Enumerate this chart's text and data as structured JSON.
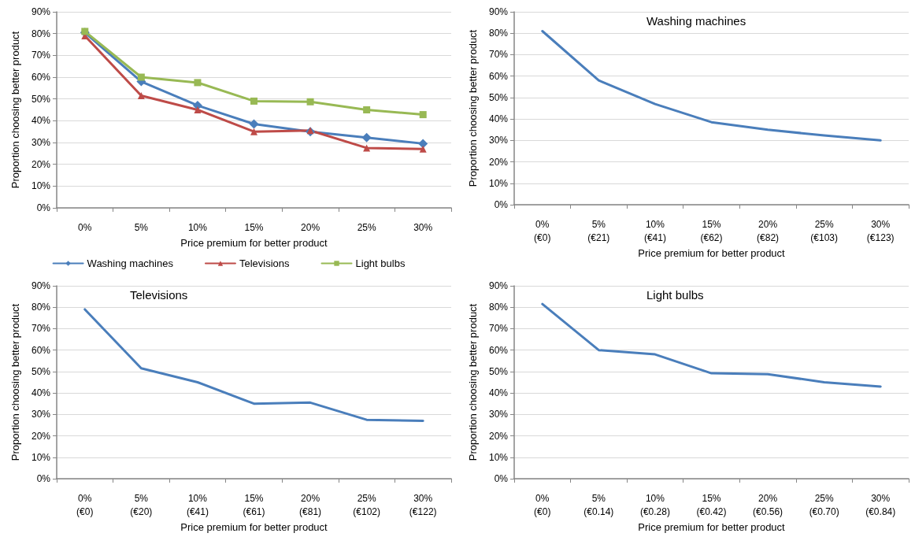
{
  "chart_data": [
    {
      "type": "line",
      "xlabel": "Price premium for better product",
      "ylabel": "Proportion choosing better product",
      "categories": [
        "0%",
        "5%",
        "10%",
        "15%",
        "20%",
        "25%",
        "30%"
      ],
      "series": [
        {
          "name": "Washing machines",
          "color": "#4a7ebb",
          "marker": "diamond",
          "values": [
            80.5,
            58,
            47,
            38.5,
            35,
            32.3,
            29.5
          ]
        },
        {
          "name": "Televisions",
          "color": "#be4b48",
          "marker": "triangle",
          "values": [
            79,
            51.5,
            45,
            35,
            35.5,
            27.5,
            27
          ]
        },
        {
          "name": "Light bulbs",
          "color": "#98b954",
          "marker": "square",
          "values": [
            81,
            60,
            57.5,
            49,
            48.7,
            45,
            42.8
          ]
        }
      ],
      "ylim": [
        0,
        90
      ],
      "yticks": [
        {
          "value": 0,
          "label": "0%"
        },
        {
          "value": 10,
          "label": "10%"
        },
        {
          "value": 20,
          "label": "20%"
        },
        {
          "value": 30,
          "label": "30%"
        },
        {
          "value": 40,
          "label": "40%"
        },
        {
          "value": 50,
          "label": "50%"
        },
        {
          "value": 60,
          "label": "60%"
        },
        {
          "value": 70,
          "label": "70%"
        },
        {
          "value": 80,
          "label": "80%"
        },
        {
          "value": 90,
          "label": "90%"
        }
      ],
      "grid": "y",
      "legend": "bottom"
    },
    {
      "type": "line",
      "title": "Washing machines",
      "xlabel": "Price premium for better product",
      "ylabel": "Proportion choosing better product",
      "categories": [
        "0%\n(€0)",
        "5%\n(€21)",
        "10%\n(€41)",
        "15%\n(€62)",
        "20%\n(€82)",
        "25%\n(€103)",
        "30%\n(€123)"
      ],
      "series": [
        {
          "color": "#4a7ebb",
          "values": [
            81,
            58,
            47,
            38.5,
            35,
            32.3,
            30
          ]
        }
      ],
      "ylim": [
        0,
        90
      ],
      "yticks": [
        {
          "value": 0,
          "label": "0%"
        },
        {
          "value": 10,
          "label": "10%"
        },
        {
          "value": 20,
          "label": "20%"
        },
        {
          "value": 30,
          "label": "30%"
        },
        {
          "value": 40,
          "label": "40%"
        },
        {
          "value": 50,
          "label": "50%"
        },
        {
          "value": 60,
          "label": "60%"
        },
        {
          "value": 70,
          "label": "70%"
        },
        {
          "value": 80,
          "label": "80%"
        },
        {
          "value": 90,
          "label": "90%"
        }
      ],
      "grid": "y"
    },
    {
      "type": "line",
      "title": "Televisions",
      "xlabel": "Price premium for better product",
      "ylabel": "Proportion choosing better product",
      "categories": [
        "0%\n(€0)",
        "5%\n(€20)",
        "10%\n(€41)",
        "15%\n(€61)",
        "20%\n(€81)",
        "25%\n(€102)",
        "30%\n(€122)"
      ],
      "series": [
        {
          "color": "#4a7ebb",
          "values": [
            79,
            51.5,
            45,
            35,
            35.5,
            27.5,
            27
          ]
        }
      ],
      "ylim": [
        0,
        90
      ],
      "yticks": [
        {
          "value": 0,
          "label": "0%"
        },
        {
          "value": 10,
          "label": "10%"
        },
        {
          "value": 20,
          "label": "20%"
        },
        {
          "value": 30,
          "label": "30%"
        },
        {
          "value": 40,
          "label": "40%"
        },
        {
          "value": 50,
          "label": "50%"
        },
        {
          "value": 60,
          "label": "60%"
        },
        {
          "value": 70,
          "label": "70%"
        },
        {
          "value": 80,
          "label": "80%"
        },
        {
          "value": 90,
          "label": "90%"
        }
      ],
      "grid": "y"
    },
    {
      "type": "line",
      "title": "Light bulbs",
      "xlabel": "Price premium for better product",
      "ylabel": "Proportion choosing better product",
      "categories": [
        "0%\n(€0)",
        "5%\n(€0.14)",
        "10%\n(€0.28)",
        "15%\n(€0.42)",
        "20%\n(€0.56)",
        "25%\n(€0.70)",
        "30%\n(€0.84)"
      ],
      "series": [
        {
          "color": "#4a7ebb",
          "values": [
            81.5,
            60,
            58,
            49.2,
            48.8,
            45,
            43
          ]
        }
      ],
      "ylim": [
        0,
        90
      ],
      "yticks": [
        {
          "value": 0,
          "label": "0%"
        },
        {
          "value": 10,
          "label": "10%"
        },
        {
          "value": 20,
          "label": "20%"
        },
        {
          "value": 30,
          "label": "30%"
        },
        {
          "value": 40,
          "label": "40%"
        },
        {
          "value": 50,
          "label": "50%"
        },
        {
          "value": 60,
          "label": "60%"
        },
        {
          "value": 70,
          "label": "70%"
        },
        {
          "value": 80,
          "label": "80%"
        },
        {
          "value": 90,
          "label": "90%"
        }
      ],
      "grid": "y"
    }
  ]
}
